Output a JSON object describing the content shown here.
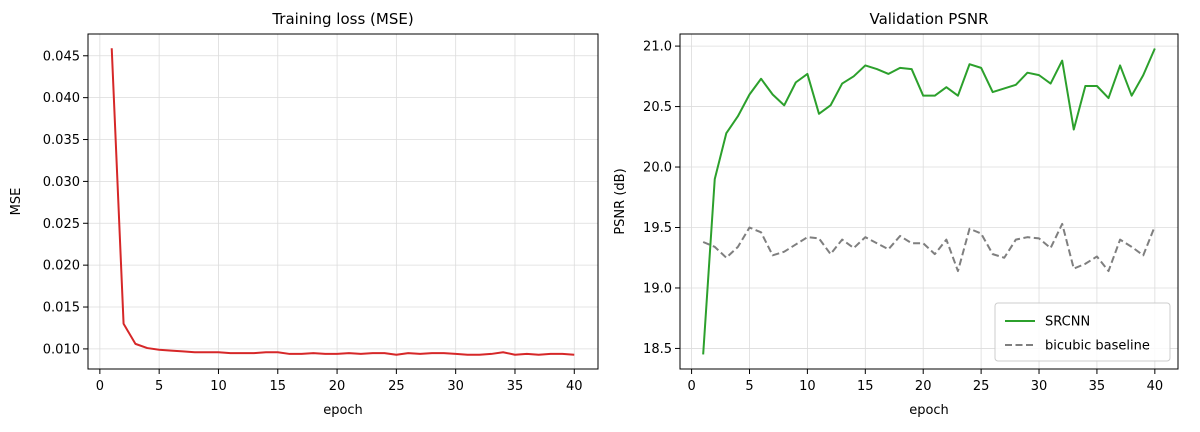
{
  "chart_data": [
    {
      "type": "line",
      "title": "Training loss (MSE)",
      "xlabel": "epoch",
      "ylabel": "MSE",
      "xlim": [
        -1,
        42
      ],
      "ylim": [
        0.0076,
        0.0476
      ],
      "xticks": [
        0,
        5,
        10,
        15,
        20,
        25,
        30,
        35,
        40
      ],
      "yticks": [
        0.01,
        0.015,
        0.02,
        0.025,
        0.03,
        0.035,
        0.04,
        0.045
      ],
      "ytick_labels": [
        "0.010",
        "0.015",
        "0.020",
        "0.025",
        "0.030",
        "0.035",
        "0.040",
        "0.045"
      ],
      "grid": true,
      "series": [
        {
          "color": "#d62728",
          "style": "solid",
          "x": [
            1,
            2,
            3,
            4,
            5,
            6,
            7,
            8,
            9,
            10,
            11,
            12,
            13,
            14,
            15,
            16,
            17,
            18,
            19,
            20,
            21,
            22,
            23,
            24,
            25,
            26,
            27,
            28,
            29,
            30,
            31,
            32,
            33,
            34,
            35,
            36,
            37,
            38,
            39,
            40
          ],
          "y": [
            0.0459,
            0.013,
            0.0106,
            0.0101,
            0.0099,
            0.0098,
            0.0097,
            0.0096,
            0.0096,
            0.0096,
            0.0095,
            0.0095,
            0.0095,
            0.0096,
            0.0096,
            0.0094,
            0.0094,
            0.0095,
            0.0094,
            0.0094,
            0.0095,
            0.0094,
            0.0095,
            0.0095,
            0.0093,
            0.0095,
            0.0094,
            0.0095,
            0.0095,
            0.0094,
            0.0093,
            0.0093,
            0.0094,
            0.0096,
            0.0093,
            0.0094,
            0.0093,
            0.0094,
            0.0094,
            0.0093
          ]
        }
      ]
    },
    {
      "type": "line",
      "title": "Validation PSNR",
      "xlabel": "epoch",
      "ylabel": "PSNR (dB)",
      "xlim": [
        -1,
        42
      ],
      "ylim": [
        18.33,
        21.1
      ],
      "xticks": [
        0,
        5,
        10,
        15,
        20,
        25,
        30,
        35,
        40
      ],
      "yticks": [
        18.5,
        19.0,
        19.5,
        20.0,
        20.5,
        21.0
      ],
      "ytick_labels": [
        "18.5",
        "19.0",
        "19.5",
        "20.0",
        "20.5",
        "21.0"
      ],
      "grid": true,
      "legend_position": "lower-right",
      "series": [
        {
          "name": "SRCNN",
          "color": "#2ca02c",
          "style": "solid",
          "x": [
            1,
            2,
            3,
            4,
            5,
            6,
            7,
            8,
            9,
            10,
            11,
            12,
            13,
            14,
            15,
            16,
            17,
            18,
            19,
            20,
            21,
            22,
            23,
            24,
            25,
            26,
            27,
            28,
            29,
            30,
            31,
            32,
            33,
            34,
            35,
            36,
            37,
            38,
            39,
            40
          ],
          "y": [
            18.45,
            19.9,
            20.28,
            20.42,
            20.6,
            20.73,
            20.6,
            20.51,
            20.7,
            20.77,
            20.44,
            20.51,
            20.69,
            20.75,
            20.84,
            20.81,
            20.77,
            20.82,
            20.81,
            20.59,
            20.59,
            20.66,
            20.59,
            20.85,
            20.82,
            20.62,
            20.65,
            20.68,
            20.78,
            20.76,
            20.69,
            20.88,
            20.31,
            20.67,
            20.67,
            20.57,
            20.84,
            20.59,
            20.76,
            20.98
          ]
        },
        {
          "name": "bicubic baseline",
          "color": "#7f7f7f",
          "style": "dashed",
          "x": [
            1,
            2,
            3,
            4,
            5,
            6,
            7,
            8,
            9,
            10,
            11,
            12,
            13,
            14,
            15,
            16,
            17,
            18,
            19,
            20,
            21,
            22,
            23,
            24,
            25,
            26,
            27,
            28,
            29,
            30,
            31,
            32,
            33,
            34,
            35,
            36,
            37,
            38,
            39,
            40
          ],
          "y": [
            19.38,
            19.34,
            19.25,
            19.34,
            19.5,
            19.46,
            19.27,
            19.3,
            19.36,
            19.42,
            19.41,
            19.28,
            19.4,
            19.33,
            19.42,
            19.37,
            19.32,
            19.43,
            19.37,
            19.37,
            19.28,
            19.4,
            19.14,
            19.49,
            19.45,
            19.28,
            19.25,
            19.4,
            19.42,
            19.41,
            19.33,
            19.53,
            19.16,
            19.2,
            19.26,
            19.14,
            19.4,
            19.34,
            19.27,
            19.51
          ]
        }
      ]
    }
  ]
}
